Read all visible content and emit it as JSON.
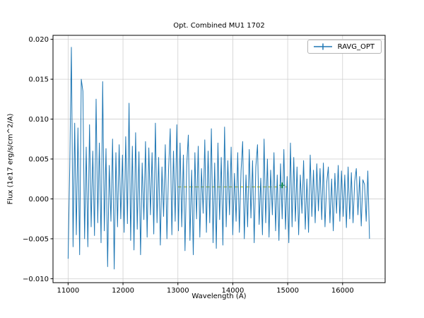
{
  "chart_data": {
    "type": "line",
    "title": "Opt. Combined MU1 1702",
    "xlabel": "Wavelength (A)",
    "ylabel": "Flux (1e17  erg/s/cm^2/A)",
    "xlim": [
      10725,
      16775
    ],
    "ylim": [
      -0.0105,
      0.0205
    ],
    "grid": true,
    "legend": {
      "label": "RAVG_OPT",
      "position": "upper right"
    },
    "xticks": {
      "values": [
        11000,
        12000,
        13000,
        14000,
        15000,
        16000
      ],
      "labels": [
        "11000",
        "12000",
        "13000",
        "14000",
        "15000",
        "16000"
      ]
    },
    "yticks": {
      "values": [
        -0.01,
        -0.005,
        0.0,
        0.005,
        0.01,
        0.015,
        0.02
      ],
      "labels": [
        "−0.010",
        "−0.005",
        "0.000",
        "0.005",
        "0.010",
        "0.015",
        "0.020"
      ]
    },
    "series": [
      {
        "name": "RAVG_OPT",
        "color": "#1f77b4",
        "x_start": 11000,
        "x_step": 30,
        "y": [
          -0.0075,
          0.004,
          0.019,
          -0.006,
          0.0095,
          -0.0045,
          0.0089,
          -0.007,
          0.015,
          0.0135,
          -0.005,
          0.0065,
          -0.006,
          0.0093,
          -0.0035,
          0.006,
          -0.0046,
          0.0125,
          -0.003,
          0.007,
          -0.0055,
          0.0147,
          -0.004,
          0.0063,
          -0.0085,
          0.0042,
          -0.0028,
          0.0075,
          -0.0088,
          0.0058,
          -0.0035,
          0.0068,
          -0.0025,
          0.0055,
          -0.0042,
          0.0078,
          -0.0031,
          0.012,
          -0.0052,
          0.0066,
          -0.0064,
          0.0083,
          -0.0038,
          0.0059,
          -0.007,
          0.0045,
          -0.0026,
          0.0072,
          -0.0048,
          0.0064,
          -0.002,
          0.0058,
          -0.0044,
          0.0095,
          -0.003,
          0.0052,
          -0.0058,
          0.004,
          -0.0022,
          0.0068,
          -0.005,
          0.0035,
          0.0088,
          -0.0045,
          0.006,
          -0.0028,
          0.0093,
          -0.004,
          0.007,
          -0.0035,
          0.0055,
          -0.0065,
          0.0042,
          0.008,
          -0.0052,
          0.0036,
          -0.007,
          0.0058,
          -0.0025,
          0.0066,
          -0.0048,
          0.0038,
          -0.0018,
          0.0074,
          -0.0042,
          0.006,
          -0.003,
          0.0088,
          -0.0055,
          0.0045,
          -0.0062,
          0.007,
          -0.0026,
          0.0052,
          -0.0058,
          0.009,
          -0.0035,
          0.0048,
          -0.002,
          0.0065,
          -0.0045,
          0.0032,
          -0.0028,
          0.0058,
          -0.0042,
          0.0035,
          0.0072,
          -0.005,
          0.003,
          -0.0035,
          0.0062,
          -0.0024,
          0.0048,
          -0.0055,
          0.004,
          0.0068,
          -0.0032,
          0.0026,
          -0.0045,
          0.0075,
          -0.003,
          0.005,
          -0.0048,
          0.0036,
          -0.002,
          0.0058,
          -0.004,
          0.003,
          -0.0052,
          0.0044,
          -0.0025,
          0.0062,
          -0.0038,
          0.0028,
          -0.0055,
          0.007,
          -0.0035,
          0.0052,
          -0.0028,
          0.004,
          -0.0045,
          0.003,
          -0.0018,
          0.0048,
          -0.0038,
          0.0025,
          -0.0042,
          0.0055,
          -0.0022,
          0.0036,
          -0.003,
          0.0044,
          -0.0015,
          0.0038,
          -0.0026,
          0.0045,
          -0.0035,
          0.002,
          0.004,
          -0.003,
          0.0025,
          -0.004,
          0.0032,
          -0.0018,
          0.0042,
          -0.0028,
          0.0035,
          -0.0022,
          0.003,
          -0.0036,
          0.004,
          -0.0025,
          0.0033,
          -0.003,
          0.0022,
          0.0038,
          -0.002,
          0.0028,
          -0.0034,
          0.0024,
          0.0018,
          -0.0028,
          0.0035,
          -0.005
        ]
      }
    ],
    "reference_line": {
      "y": 0.0015,
      "x_start": 13000,
      "x_end": 15000,
      "color": "#bcbd22",
      "style": "dashed",
      "marker": {
        "x": 14900,
        "y": 0.0017,
        "color": "#2ca02c",
        "shape": "plus"
      }
    }
  }
}
